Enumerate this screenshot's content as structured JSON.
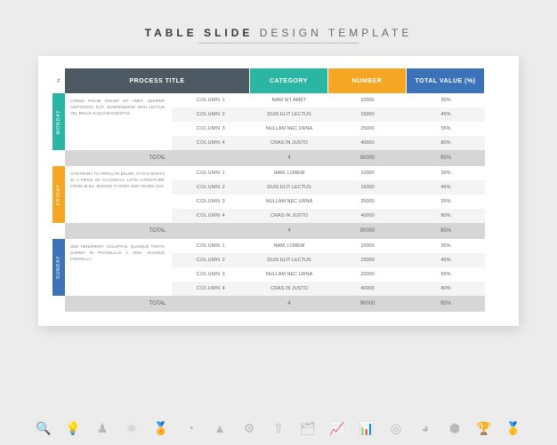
{
  "page_title": {
    "bold": "TABLE SLIDE",
    "light": "DESIGN TEMPLATE"
  },
  "styling": {
    "bg": "#ececec",
    "card_bg": "#ffffff",
    "shadow": "2px 4px 12px rgba(0,0,0,0.12)",
    "header_colors": {
      "default": "#4e5a63",
      "category": "#2bb6a3",
      "number": "#f5a623",
      "total": "#3c72b8"
    },
    "day_colors": {
      "monday": "#2bb6a3",
      "friday": "#f5a623",
      "sunday": "#3c72b8"
    },
    "stripe_bg": "#f4f4f4",
    "total_bg": "#d6d6d6",
    "title_fontsize": 12,
    "header_fontsize": 7,
    "cell_fontsize": 5.5
  },
  "headers": {
    "hash": "#",
    "process": "PROCESS TITLE",
    "category": "CATEGORY",
    "number": "NUMBER",
    "total": "TOTAL VALUE (%)"
  },
  "sections": [
    {
      "day": "MONDAY",
      "day_color": "#2bb6a3",
      "desc": "LOREM IPSUM DOLOR SIT AMET, SEMPER ADIPISCING ELIT. SUSPENDISSE NON LECTUS VEL RISUS ALIQUAM EGESTAS.",
      "rows": [
        {
          "col": "COLUMN 1",
          "cat": "NAM SIT AMET",
          "num": "10000",
          "pct": "30%"
        },
        {
          "col": "COLUMN 2",
          "cat": "DUIS ELIT LECTUS",
          "num": "15000",
          "pct": "45%"
        },
        {
          "col": "COLUMN 3",
          "cat": "NULLAM NEC URNA",
          "num": "25000",
          "pct": "55%"
        },
        {
          "col": "COLUMN 4",
          "cat": "CRAS IN JUSTO",
          "num": "40000",
          "pct": "80%"
        }
      ],
      "total": {
        "label": "TOTAL",
        "count": "4",
        "num": "90000",
        "pct": "95%"
      }
    },
    {
      "day": "FRIDAY",
      "day_color": "#f5a623",
      "desc": "CONTRARY TO POPULAR BELIEF, IT HAS ROOTS IN A PIECE OF CLASSICAL LATIN LITERATURE FROM 45 BC, MAKING IT OVER 2000 YEARS OLD.",
      "rows": [
        {
          "col": "COLUMN 1",
          "cat": "NAM, LOREM",
          "num": "10000",
          "pct": "30%"
        },
        {
          "col": "COLUMN 2",
          "cat": "DUIS ELIT LECTUS",
          "num": "15000",
          "pct": "45%"
        },
        {
          "col": "COLUMN 3",
          "cat": "NULLAM NEC URNA",
          "num": "25000",
          "pct": "55%"
        },
        {
          "col": "COLUMN 4",
          "cat": "CRAS IN JUSTO",
          "num": "40000",
          "pct": "80%"
        }
      ],
      "total": {
        "label": "TOTAL",
        "count": "4",
        "num": "90000",
        "pct": "95%"
      }
    },
    {
      "day": "SUNDAY",
      "day_color": "#3c72b8",
      "desc": "SED HENDRERIT VOLUPTAS. QUISQUE PORTA SAPIEN IN PHASELLUS A SEM. VIVAMUS FRINGILLA.",
      "rows": [
        {
          "col": "COLUMN 1",
          "cat": "NAM, LOREM",
          "num": "10000",
          "pct": "30%"
        },
        {
          "col": "COLUMN 2",
          "cat": "DUIS ELIT LECTUS",
          "num": "15000",
          "pct": "45%"
        },
        {
          "col": "COLUMN 3",
          "cat": "NULLAM NEC URNA",
          "num": "25000",
          "pct": "55%"
        },
        {
          "col": "COLUMN 4",
          "cat": "CRAS IN JUSTO",
          "num": "40000",
          "pct": "80%"
        }
      ],
      "total": {
        "label": "TOTAL",
        "count": "4",
        "num": "90000",
        "pct": "95%"
      }
    }
  ],
  "icons": [
    "magnifier",
    "lightbulb",
    "pawn",
    "network",
    "medal",
    "pie",
    "cone",
    "gear",
    "arrow-up",
    "folder",
    "bars-up",
    "bars",
    "target",
    "pie2",
    "guard",
    "trophy",
    "medal2"
  ]
}
